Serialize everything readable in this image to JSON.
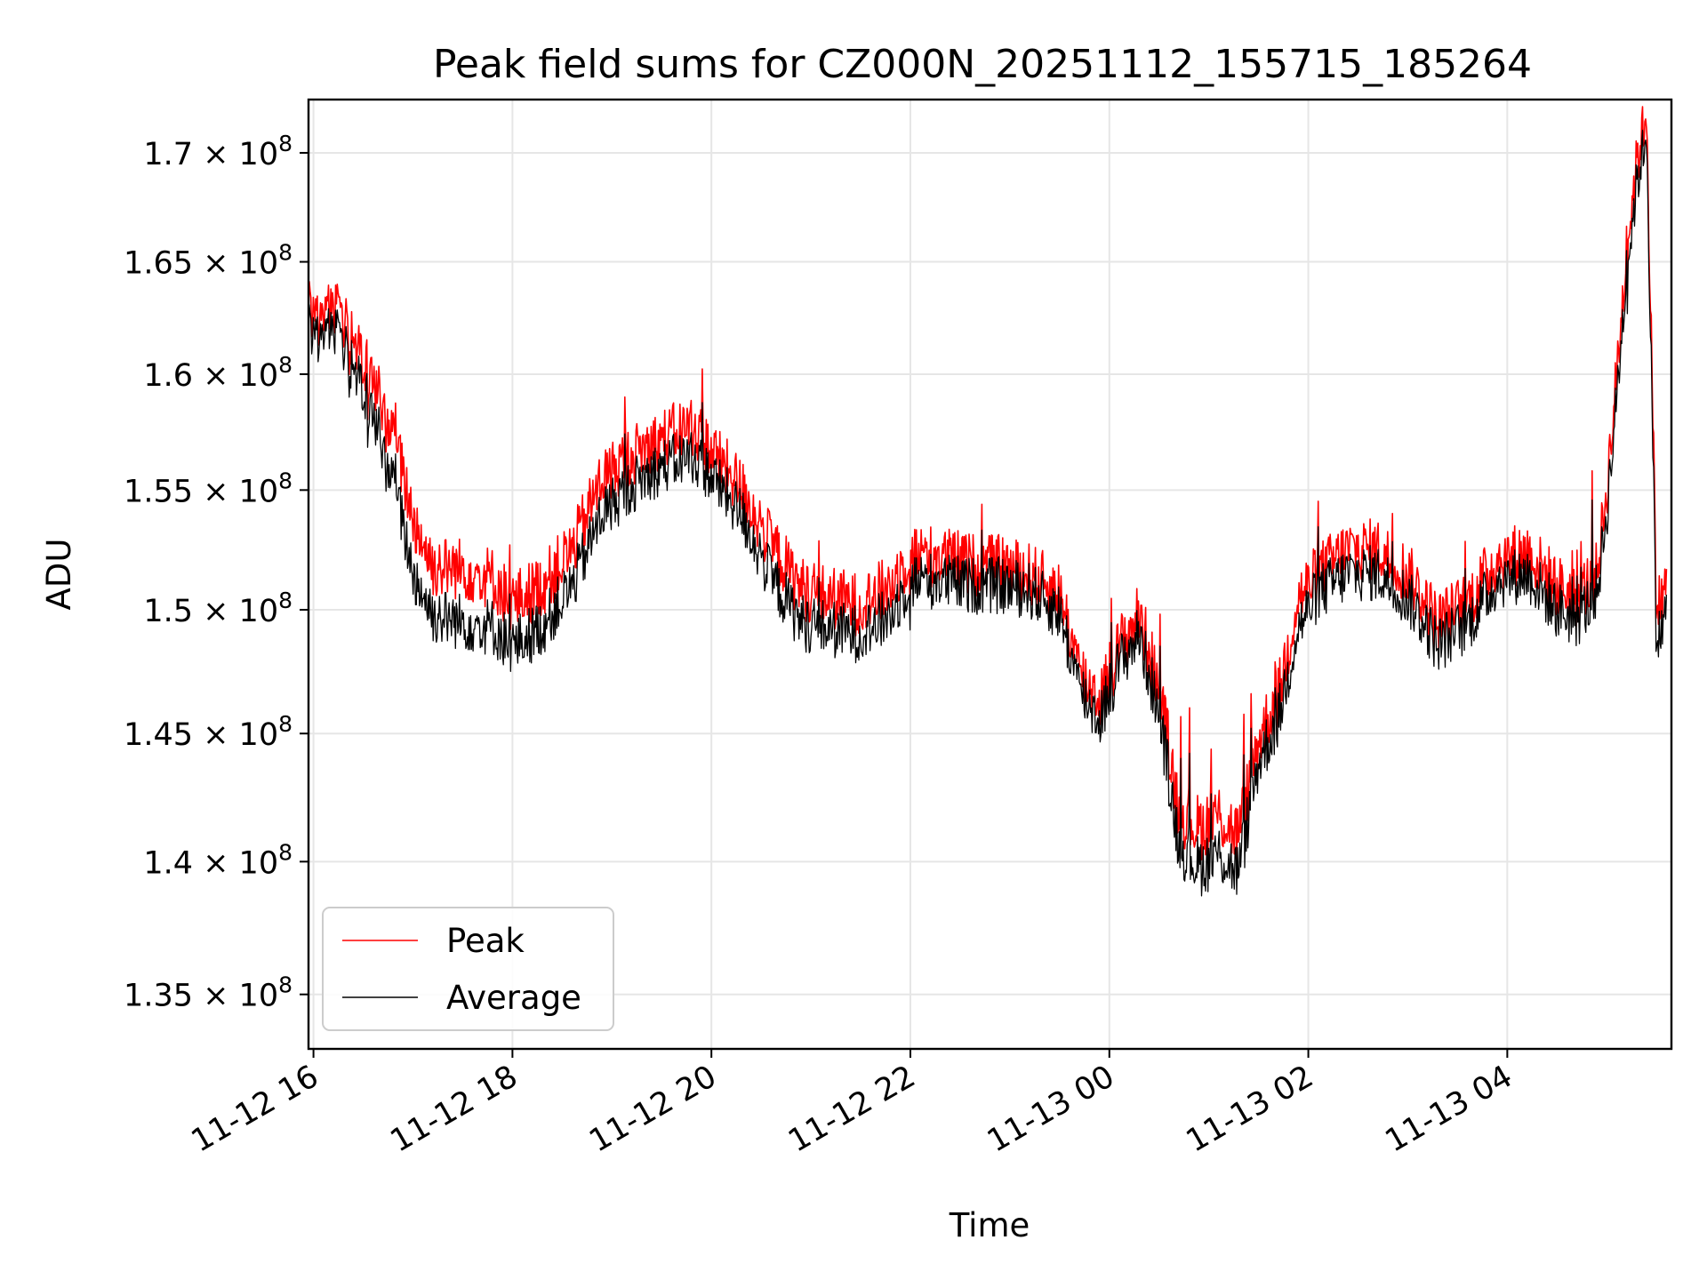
{
  "chart_data": {
    "type": "line",
    "title": "Peak field sums for CZ000N_20251112_155715_185264",
    "xlabel": "Time",
    "ylabel": "ADU",
    "x_unit": "hours since 2025-11-12 16:00",
    "xlim": [
      -0.05,
      13.65
    ],
    "ylim": [
      133000000,
      172500000
    ],
    "y_scale": "log",
    "grid": true,
    "legend_position": "lower-left",
    "x_ticks": [
      {
        "value": 0,
        "label": "11-12 16"
      },
      {
        "value": 2,
        "label": "11-12 18"
      },
      {
        "value": 4,
        "label": "11-12 20"
      },
      {
        "value": 6,
        "label": "11-12 22"
      },
      {
        "value": 8,
        "label": "11-13 00"
      },
      {
        "value": 10,
        "label": "11-13 02"
      },
      {
        "value": 12,
        "label": "11-13 04"
      }
    ],
    "y_ticks": [
      {
        "value": 135000000,
        "mantissa": "1.35",
        "base": "10",
        "exp": "8"
      },
      {
        "value": 140000000,
        "mantissa": "1.4",
        "base": "10",
        "exp": "8"
      },
      {
        "value": 145000000,
        "mantissa": "1.45",
        "base": "10",
        "exp": "8"
      },
      {
        "value": 150000000,
        "mantissa": "1.5",
        "base": "10",
        "exp": "8"
      },
      {
        "value": 155000000,
        "mantissa": "1.55",
        "base": "10",
        "exp": "8"
      },
      {
        "value": 160000000,
        "mantissa": "1.6",
        "base": "10",
        "exp": "8"
      },
      {
        "value": 165000000,
        "mantissa": "1.65",
        "base": "10",
        "exp": "8"
      },
      {
        "value": 170000000,
        "mantissa": "1.7",
        "base": "10",
        "exp": "8"
      }
    ],
    "times_symbol": "×",
    "series": [
      {
        "name": "Peak",
        "color": "#ff0000",
        "x": [
          -0.05,
          0,
          0.2,
          0.5,
          0.8,
          1,
          1.2,
          1.5,
          1.8,
          2,
          2.3,
          2.6,
          2.9,
          3.2,
          3.5,
          3.8,
          4,
          4.3,
          4.6,
          4.9,
          5.2,
          5.5,
          5.8,
          6,
          6.3,
          6.6,
          6.9,
          7.2,
          7.5,
          7.7,
          7.9,
          8.1,
          8.3,
          8.5,
          8.7,
          8.9,
          9.1,
          9.3,
          9.5,
          9.7,
          9.9,
          10.1,
          10.4,
          10.7,
          11,
          11.3,
          11.6,
          11.9,
          12.2,
          12.5,
          12.7,
          12.9,
          13,
          13.1,
          13.2,
          13.3,
          13.4,
          13.5,
          13.6
        ],
        "y": [
          163500000,
          162300000,
          163000000,
          160800000,
          157500000,
          153800000,
          151800000,
          151700000,
          151300000,
          150300000,
          151000000,
          152500000,
          155500000,
          156500000,
          157200000,
          157800000,
          156700000,
          155100000,
          152700000,
          150900000,
          150500000,
          150200000,
          151000000,
          152300000,
          152200000,
          151900000,
          151800000,
          151500000,
          150700000,
          147500000,
          146400000,
          148500000,
          149800000,
          146800000,
          142000000,
          141300000,
          141800000,
          141000000,
          144800000,
          146500000,
          150500000,
          151500000,
          152500000,
          152500000,
          151500000,
          149500000,
          150300000,
          152100000,
          152400000,
          151000000,
          150500000,
          151500000,
          155000000,
          160000000,
          165500000,
          169500000,
          172000000,
          150000000,
          151000000
        ]
      },
      {
        "name": "Average",
        "color": "#000000",
        "x": [
          -0.05,
          0,
          0.2,
          0.5,
          0.8,
          1,
          1.2,
          1.5,
          1.8,
          2,
          2.3,
          2.6,
          2.9,
          3.2,
          3.5,
          3.8,
          4,
          4.3,
          4.6,
          4.9,
          5.2,
          5.5,
          5.8,
          6,
          6.3,
          6.6,
          6.9,
          7.2,
          7.5,
          7.7,
          7.9,
          8.1,
          8.3,
          8.5,
          8.7,
          8.9,
          9.1,
          9.3,
          9.5,
          9.7,
          9.9,
          10.1,
          10.4,
          10.7,
          11,
          11.3,
          11.6,
          11.9,
          12.2,
          12.5,
          12.7,
          12.9,
          13,
          13.1,
          13.2,
          13.3,
          13.4,
          13.5,
          13.6
        ],
        "y": [
          162500000,
          161500000,
          162000000,
          159500000,
          155500000,
          151500000,
          149800000,
          149500000,
          149300000,
          148500000,
          149300000,
          151000000,
          154000000,
          155200000,
          156000000,
          156500000,
          155600000,
          154000000,
          151300000,
          149500000,
          149200000,
          149000000,
          149800000,
          151200000,
          151200000,
          151000000,
          151000000,
          150800000,
          149900000,
          146800000,
          145600000,
          147800000,
          149000000,
          145800000,
          140700000,
          139800000,
          140300000,
          139600000,
          143900000,
          145600000,
          149300000,
          150700000,
          151500000,
          151500000,
          150500000,
          148600000,
          149400000,
          151200000,
          151500000,
          150000000,
          149600000,
          150700000,
          154000000,
          159000000,
          164500000,
          168500000,
          171000000,
          148500000,
          150000000
        ]
      }
    ]
  }
}
